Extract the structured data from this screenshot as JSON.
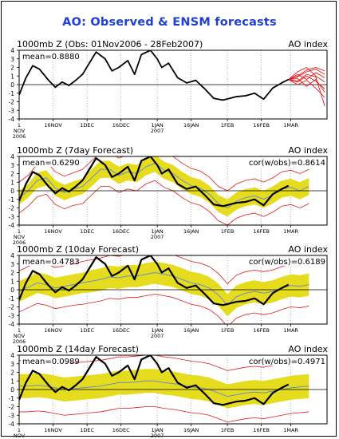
{
  "title": "AO: Observed & ENSM forecasts",
  "x_tick_labels": [
    "1\nNOV\n2006",
    "16NOV",
    "1DEC",
    "16DEC",
    "1JAN\n2007",
    "16JAN",
    "1FEB",
    "16FEB",
    "1MAR"
  ],
  "y_tick_labels": [
    "4",
    "3",
    "2",
    "1",
    "0",
    "-1",
    "-2",
    "-3",
    "-4"
  ],
  "colors": {
    "title": "#1f3fd6",
    "obs": "#000000",
    "member": "#e41a1c",
    "spread": "#e6dc1e",
    "mean_line": "#6a8fc9",
    "zero": "#000000"
  },
  "chart_data": [
    {
      "type": "line",
      "panel_title": "1000mb Z (Obs: 01Nov2006 - 28Feb2007)",
      "right_title": "AO index",
      "stat": "mean=0.8880",
      "ylim": [
        -4,
        4
      ],
      "x_start": "2006-11-01",
      "x_end": "2007-03-15",
      "observed": {
        "x": [
          0,
          3,
          6,
          9,
          13,
          16,
          19,
          22,
          25,
          28,
          31,
          34,
          38,
          41,
          44,
          48,
          51,
          54,
          58,
          61,
          63,
          66,
          70,
          74,
          78,
          82,
          86,
          90,
          93,
          96,
          100,
          104,
          108,
          112,
          116,
          119
        ],
        "y": [
          -1.2,
          0.8,
          2.2,
          1.8,
          0.5,
          -0.3,
          0.3,
          -0.1,
          0.5,
          1.2,
          2.5,
          3.8,
          3.0,
          1.6,
          2.0,
          2.8,
          1.2,
          3.5,
          4.0,
          3.0,
          2.0,
          2.5,
          0.8,
          0.2,
          0.5,
          -0.5,
          -1.6,
          -1.8,
          -1.6,
          -1.4,
          -1.3,
          -1.0,
          -1.7,
          -0.4,
          0.2,
          0.6
        ]
      },
      "forecast_members": [
        {
          "x": [
            119,
            123,
            127,
            131,
            135
          ],
          "y": [
            0.6,
            0.9,
            1.5,
            1.8,
            1.2
          ]
        },
        {
          "x": [
            119,
            123,
            127,
            131,
            135
          ],
          "y": [
            0.6,
            0.3,
            1.0,
            0.4,
            -0.5
          ]
        },
        {
          "x": [
            119,
            123,
            127,
            131,
            135
          ],
          "y": [
            0.6,
            1.2,
            0.6,
            1.4,
            0.8
          ]
        },
        {
          "x": [
            119,
            123,
            127,
            131,
            135
          ],
          "y": [
            0.6,
            0.0,
            0.5,
            -0.4,
            -1.5
          ]
        },
        {
          "x": [
            119,
            123,
            127,
            131,
            135
          ],
          "y": [
            0.6,
            1.5,
            2.0,
            1.0,
            0.3
          ]
        },
        {
          "x": [
            119,
            123,
            127,
            131,
            135
          ],
          "y": [
            0.6,
            0.7,
            -0.2,
            0.6,
            -0.9
          ]
        },
        {
          "x": [
            119,
            123,
            127,
            131,
            135
          ],
          "y": [
            0.6,
            1.0,
            1.7,
            2.0,
            1.6
          ]
        },
        {
          "x": [
            119,
            123,
            127,
            131,
            135
          ],
          "y": [
            0.6,
            0.4,
            1.2,
            0.9,
            -2.5
          ]
        }
      ]
    },
    {
      "type": "line",
      "panel_title": "1000mb Z (7day Forecast)",
      "right_title": "AO index",
      "stat": "mean=0.6290",
      "corr": "cor(w/obs)=0.8614",
      "ylim": [
        -4,
        4
      ],
      "observed": {
        "x": [
          0,
          3,
          6,
          9,
          13,
          16,
          19,
          22,
          25,
          28,
          31,
          34,
          38,
          41,
          44,
          48,
          51,
          54,
          58,
          61,
          63,
          66,
          70,
          74,
          78,
          82,
          86,
          90,
          93,
          96,
          100,
          104,
          108,
          112,
          116,
          119
        ],
        "y": [
          -1.2,
          0.8,
          2.2,
          1.8,
          0.5,
          -0.3,
          0.3,
          -0.1,
          0.5,
          1.2,
          2.5,
          3.8,
          3.0,
          1.6,
          2.0,
          2.8,
          1.2,
          3.5,
          4.0,
          3.0,
          2.0,
          2.5,
          0.8,
          0.2,
          0.5,
          -0.5,
          -1.6,
          -1.8,
          -1.6,
          -1.4,
          -1.3,
          -1.0,
          -1.7,
          -0.4,
          0.2,
          0.6
        ]
      },
      "ens_mean": {
        "x": [
          0,
          4,
          8,
          12,
          16,
          20,
          24,
          28,
          32,
          36,
          40,
          44,
          48,
          52,
          56,
          60,
          64,
          68,
          72,
          76,
          80,
          84,
          88,
          92,
          96,
          100,
          104,
          108,
          112,
          116,
          120,
          124,
          128
        ],
        "y": [
          -0.8,
          0.0,
          1.2,
          1.5,
          0.3,
          -0.2,
          0.2,
          0.5,
          1.5,
          2.5,
          2.5,
          1.8,
          2.2,
          2.0,
          2.8,
          3.2,
          2.4,
          2.0,
          1.2,
          0.6,
          0.3,
          -0.4,
          -1.5,
          -2.0,
          -1.2,
          -0.8,
          -0.6,
          -1.0,
          -0.5,
          0.2,
          0.4,
          0.0,
          0.5
        ]
      },
      "spread": [
        0.8,
        0.8,
        0.9,
        0.9,
        0.9,
        0.9,
        0.9,
        0.9,
        1.0,
        1.0,
        1.0,
        1.0,
        1.0,
        1.0,
        1.0,
        1.0,
        1.0,
        1.0,
        1.0,
        1.0,
        1.0,
        1.0,
        1.0,
        1.0,
        1.0,
        1.0,
        1.0,
        1.0,
        1.0,
        1.0,
        1.0,
        1.0,
        1.0
      ],
      "outer": [
        1.8,
        1.8,
        1.9,
        1.9,
        1.9,
        1.9,
        1.9,
        2.0,
        2.0,
        2.0,
        2.0,
        2.0,
        2.0,
        2.0,
        2.0,
        2.0,
        2.0,
        2.0,
        2.0,
        2.0,
        2.0,
        2.0,
        2.0,
        2.0,
        2.0,
        2.0,
        2.0,
        2.0,
        2.0,
        2.0,
        2.0,
        2.0,
        2.0
      ]
    },
    {
      "type": "line",
      "panel_title": "1000mb Z (10day Forecast)",
      "right_title": "AO index",
      "stat": "mean=0.4783",
      "corr": "cor(w/obs)=0.6189",
      "ylim": [
        -4,
        4
      ],
      "observed": {
        "x": [
          0,
          3,
          6,
          9,
          13,
          16,
          19,
          22,
          25,
          28,
          31,
          34,
          38,
          41,
          44,
          48,
          51,
          54,
          58,
          61,
          63,
          66,
          70,
          74,
          78,
          82,
          86,
          90,
          93,
          96,
          100,
          104,
          108,
          112,
          116,
          119
        ],
        "y": [
          -1.2,
          0.8,
          2.2,
          1.8,
          0.5,
          -0.3,
          0.3,
          -0.1,
          0.5,
          1.2,
          2.5,
          3.8,
          3.0,
          1.6,
          2.0,
          2.8,
          1.2,
          3.5,
          4.0,
          3.0,
          2.0,
          2.5,
          0.8,
          0.2,
          0.5,
          -0.5,
          -1.6,
          -1.8,
          -1.6,
          -1.4,
          -1.3,
          -1.0,
          -1.7,
          -0.4,
          0.2,
          0.6
        ]
      },
      "ens_mean": {
        "x": [
          0,
          4,
          8,
          12,
          16,
          20,
          24,
          28,
          32,
          36,
          40,
          44,
          48,
          52,
          56,
          60,
          64,
          68,
          72,
          76,
          80,
          84,
          88,
          92,
          96,
          100,
          104,
          108,
          112,
          116,
          120,
          124,
          128
        ],
        "y": [
          -0.2,
          0.3,
          0.8,
          0.6,
          0.2,
          0.4,
          0.6,
          0.8,
          1.0,
          1.2,
          1.5,
          1.4,
          1.6,
          1.6,
          1.8,
          2.0,
          1.8,
          1.6,
          1.2,
          0.8,
          0.6,
          0.2,
          -0.6,
          -1.8,
          -0.8,
          -0.4,
          -0.2,
          -0.4,
          -0.2,
          0.2,
          0.5,
          0.4,
          0.6
        ]
      },
      "spread": [
        1.2,
        1.2,
        1.2,
        1.2,
        1.2,
        1.2,
        1.2,
        1.2,
        1.3,
        1.3,
        1.3,
        1.3,
        1.3,
        1.3,
        1.3,
        1.3,
        1.3,
        1.3,
        1.3,
        1.3,
        1.3,
        1.3,
        1.3,
        1.3,
        1.3,
        1.3,
        1.3,
        1.3,
        1.3,
        1.3,
        1.3,
        1.3,
        1.3
      ],
      "outer": [
        2.4,
        2.4,
        2.4,
        2.4,
        2.4,
        2.4,
        2.4,
        2.5,
        2.5,
        2.5,
        2.5,
        2.5,
        2.5,
        2.5,
        2.5,
        2.5,
        2.5,
        2.5,
        2.5,
        2.5,
        2.5,
        2.5,
        2.5,
        2.5,
        2.5,
        2.5,
        2.5,
        2.5,
        2.5,
        2.5,
        2.5,
        2.5,
        2.5
      ]
    },
    {
      "type": "line",
      "panel_title": "1000mb Z (14day Forecast)",
      "right_title": "AO index",
      "stat": "mean=0.0989",
      "corr": "cor(w/obs)=0.4971",
      "ylim": [
        -4,
        4
      ],
      "observed": {
        "x": [
          0,
          3,
          6,
          9,
          13,
          16,
          19,
          22,
          25,
          28,
          31,
          34,
          38,
          41,
          44,
          48,
          51,
          54,
          58,
          61,
          63,
          66,
          70,
          74,
          78,
          82,
          86,
          90,
          93,
          96,
          100,
          104,
          108,
          112,
          116,
          119
        ],
        "y": [
          -1.2,
          0.8,
          2.2,
          1.8,
          0.5,
          -0.3,
          0.3,
          -0.1,
          0.5,
          1.2,
          2.5,
          3.8,
          3.0,
          1.6,
          2.0,
          2.8,
          1.2,
          3.5,
          4.0,
          3.0,
          2.0,
          2.5,
          0.8,
          0.2,
          0.5,
          -0.5,
          -1.6,
          -1.8,
          -1.6,
          -1.4,
          -1.3,
          -1.0,
          -1.7,
          -0.4,
          0.2,
          0.6
        ]
      },
      "ens_mean": {
        "x": [
          0,
          4,
          8,
          12,
          16,
          20,
          24,
          28,
          32,
          36,
          40,
          44,
          48,
          52,
          56,
          60,
          64,
          68,
          72,
          76,
          80,
          84,
          88,
          92,
          96,
          100,
          104,
          108,
          112,
          116,
          120,
          124,
          128
        ],
        "y": [
          0.4,
          0.4,
          0.5,
          0.4,
          0.2,
          0.0,
          0.1,
          0.2,
          0.3,
          0.4,
          0.6,
          0.8,
          0.8,
          0.9,
          1.0,
          1.0,
          0.8,
          0.7,
          0.5,
          0.3,
          0.2,
          0.0,
          -0.4,
          -0.8,
          -0.6,
          -0.4,
          -0.3,
          -0.4,
          -0.2,
          0.0,
          0.2,
          0.3,
          0.4
        ]
      },
      "spread": [
        1.4,
        1.4,
        1.4,
        1.4,
        1.4,
        1.4,
        1.4,
        1.4,
        1.4,
        1.4,
        1.4,
        1.4,
        1.4,
        1.4,
        1.4,
        1.4,
        1.4,
        1.4,
        1.4,
        1.4,
        1.4,
        1.4,
        1.4,
        1.4,
        1.4,
        1.4,
        1.4,
        1.4,
        1.4,
        1.4,
        1.4,
        1.4,
        1.4
      ],
      "outer": [
        3.0,
        3.0,
        3.0,
        3.0,
        3.0,
        3.0,
        3.0,
        3.0,
        3.0,
        3.0,
        3.0,
        3.0,
        3.0,
        3.0,
        3.0,
        3.0,
        3.0,
        3.0,
        3.0,
        3.0,
        3.0,
        3.0,
        3.0,
        3.0,
        3.0,
        3.0,
        3.0,
        3.0,
        3.0,
        3.0,
        3.0,
        3.0,
        3.0
      ]
    }
  ]
}
